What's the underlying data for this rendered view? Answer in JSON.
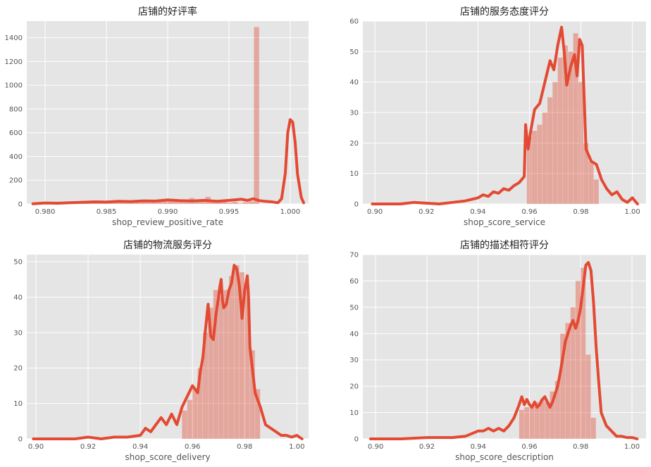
{
  "chart_data": [
    {
      "type": "histogram+kde",
      "title": "店铺的好评率",
      "xlabel": "shop_review_positive_rate",
      "ylabel": "",
      "xlim": [
        0.9785,
        1.0015
      ],
      "ylim": [
        0,
        1540
      ],
      "xticks": [
        0.98,
        0.985,
        0.99,
        0.995,
        1.0
      ],
      "xtick_labels": [
        "0.980",
        "0.985",
        "0.990",
        "0.995",
        "1.000"
      ],
      "yticks": [
        0,
        200,
        400,
        600,
        800,
        1000,
        1200,
        1400
      ],
      "grid": true,
      "color": "#E24A33",
      "bins": {
        "start": 0.979,
        "width": 0.00044,
        "values": [
          5,
          5,
          6,
          8,
          8,
          10,
          12,
          14,
          14,
          15,
          18,
          16,
          22,
          20,
          18,
          22,
          30,
          24,
          28,
          22,
          26,
          24,
          30,
          26,
          28,
          32,
          30,
          35,
          32,
          50,
          30,
          40,
          60,
          26,
          30,
          20,
          12,
          18,
          5,
          15,
          20,
          1490,
          0
        ]
      },
      "kde": {
        "x": [
          0.979,
          0.98,
          0.981,
          0.982,
          0.983,
          0.984,
          0.985,
          0.986,
          0.987,
          0.988,
          0.989,
          0.99,
          0.991,
          0.992,
          0.993,
          0.994,
          0.995,
          0.996,
          0.9965,
          0.997,
          0.9975,
          0.998,
          0.9985,
          0.999,
          0.9993,
          0.9996,
          0.9998,
          1.0,
          1.0002,
          1.0004,
          1.0006,
          1.0009,
          1.0011
        ],
        "y": [
          2,
          8,
          6,
          10,
          14,
          18,
          16,
          22,
          20,
          26,
          24,
          34,
          28,
          25,
          30,
          22,
          30,
          40,
          30,
          44,
          28,
          22,
          18,
          10,
          45,
          260,
          600,
          710,
          690,
          520,
          250,
          55,
          10
        ]
      }
    },
    {
      "type": "histogram+kde",
      "title": "店铺的服务态度评分",
      "xlabel": "shop_score_service",
      "ylabel": "",
      "xlim": [
        0.8953,
        1.0053
      ],
      "ylim": [
        0,
        60
      ],
      "xticks": [
        0.9,
        0.92,
        0.94,
        0.96,
        0.98,
        1.0
      ],
      "xtick_labels": [
        "0.90",
        "0.92",
        "0.94",
        "0.96",
        "0.98",
        "1.00"
      ],
      "yticks": [
        0,
        10,
        20,
        30,
        40,
        50,
        60
      ],
      "grid": true,
      "color": "#E24A33",
      "bins": {
        "start": 0.959,
        "width": 0.002,
        "values": [
          22,
          24,
          26,
          30,
          35,
          40,
          48,
          52,
          50,
          56,
          40,
          20,
          14,
          8
        ]
      },
      "kde": {
        "x": [
          0.899,
          0.91,
          0.915,
          0.925,
          0.93,
          0.935,
          0.94,
          0.942,
          0.944,
          0.946,
          0.948,
          0.95,
          0.952,
          0.954,
          0.956,
          0.958,
          0.9585,
          0.9595,
          0.9605,
          0.962,
          0.964,
          0.966,
          0.968,
          0.9695,
          0.971,
          0.9725,
          0.9735,
          0.9745,
          0.976,
          0.9775,
          0.9785,
          0.9795,
          0.9805,
          0.982,
          0.984,
          0.986,
          0.988,
          0.99,
          0.992,
          0.994,
          0.996,
          0.998,
          1.0,
          1.002
        ],
        "y": [
          0,
          0,
          0.5,
          0,
          0.5,
          1,
          2,
          3,
          2.5,
          4,
          3.5,
          5,
          4.5,
          6,
          7,
          9,
          26,
          18,
          24,
          31,
          33,
          40,
          47,
          44,
          52,
          58,
          50,
          39,
          45,
          49,
          42,
          54,
          52,
          18,
          14,
          13,
          8,
          5,
          3,
          4,
          1.5,
          0.5,
          2,
          0
        ]
      }
    },
    {
      "type": "histogram+kde",
      "title": "店铺的物流服务评分",
      "xlabel": "shop_score_delivery",
      "ylabel": "",
      "xlim": [
        0.8965,
        1.0045
      ],
      "ylim": [
        0,
        52
      ],
      "xticks": [
        0.9,
        0.92,
        0.94,
        0.96,
        0.98,
        1.0
      ],
      "xtick_labels": [
        "0.90",
        "0.92",
        "0.94",
        "0.96",
        "0.98",
        "1.00"
      ],
      "yticks": [
        0,
        10,
        20,
        30,
        40,
        50
      ],
      "grid": true,
      "color": "#E24A33",
      "bins": {
        "start": 0.956,
        "width": 0.002,
        "values": [
          8,
          11,
          14,
          20,
          30,
          37,
          42,
          40,
          42,
          46,
          49,
          47,
          43,
          25,
          14
        ]
      },
      "kde": {
        "x": [
          0.899,
          0.915,
          0.92,
          0.925,
          0.93,
          0.935,
          0.94,
          0.942,
          0.944,
          0.946,
          0.948,
          0.95,
          0.952,
          0.954,
          0.956,
          0.958,
          0.96,
          0.962,
          0.963,
          0.964,
          0.965,
          0.966,
          0.967,
          0.968,
          0.969,
          0.97,
          0.9705,
          0.971,
          0.9715,
          0.972,
          0.973,
          0.974,
          0.975,
          0.976,
          0.977,
          0.978,
          0.979,
          0.98,
          0.981,
          0.9815,
          0.982,
          0.984,
          0.986,
          0.988,
          0.99,
          0.992,
          0.994,
          0.996,
          0.998,
          1.0,
          1.002
        ],
        "y": [
          0,
          0,
          0.5,
          0,
          0.5,
          0.5,
          1,
          3,
          2,
          4,
          6,
          4,
          7,
          4,
          9,
          12,
          15,
          13,
          19,
          23,
          31,
          38,
          29,
          28,
          35,
          40,
          43,
          45,
          39,
          37,
          38,
          42,
          44,
          49,
          48,
          43,
          34,
          42,
          46,
          40,
          26,
          13,
          9,
          4,
          3,
          2,
          1,
          1,
          0.5,
          1,
          0
        ]
      }
    },
    {
      "type": "histogram+kde",
      "title": "店铺的描述相符评分",
      "xlabel": "shop_score_description",
      "ylabel": "",
      "xlim": [
        0.895,
        1.0055
      ],
      "ylim": [
        0,
        70
      ],
      "xticks": [
        0.9,
        0.92,
        0.94,
        0.96,
        0.98,
        1.0
      ],
      "xtick_labels": [
        "0.90",
        "0.92",
        "0.94",
        "0.96",
        "0.98",
        "1.00"
      ],
      "yticks": [
        0,
        10,
        20,
        30,
        40,
        50,
        60,
        70
      ],
      "grid": true,
      "color": "#E24A33",
      "bins": {
        "start": 0.956,
        "width": 0.002,
        "values": [
          11,
          12,
          13,
          14,
          15,
          14,
          18,
          22,
          40,
          44,
          50,
          60,
          65,
          32,
          8
        ]
      },
      "kde": {
        "x": [
          0.898,
          0.91,
          0.92,
          0.925,
          0.93,
          0.935,
          0.94,
          0.942,
          0.944,
          0.946,
          0.948,
          0.95,
          0.952,
          0.954,
          0.956,
          0.957,
          0.958,
          0.959,
          0.96,
          0.961,
          0.962,
          0.963,
          0.964,
          0.965,
          0.966,
          0.967,
          0.968,
          0.969,
          0.97,
          0.971,
          0.972,
          0.973,
          0.974,
          0.975,
          0.976,
          0.977,
          0.978,
          0.979,
          0.98,
          0.981,
          0.982,
          0.983,
          0.984,
          0.985,
          0.986,
          0.987,
          0.988,
          0.99,
          0.992,
          0.994,
          0.996,
          0.998,
          1.0,
          1.002
        ],
        "y": [
          0,
          0,
          0.5,
          0.5,
          0.5,
          1,
          3,
          3,
          4,
          3,
          4,
          3,
          5,
          8,
          13,
          16,
          13,
          15,
          13,
          12,
          14,
          12,
          13,
          15,
          16,
          14,
          12,
          14,
          17,
          20,
          25,
          31,
          37,
          40,
          43,
          45,
          42,
          45,
          50,
          58,
          66,
          67,
          64,
          52,
          35,
          22,
          10,
          5,
          3,
          1,
          1,
          0.5,
          0.5,
          0
        ]
      }
    }
  ]
}
